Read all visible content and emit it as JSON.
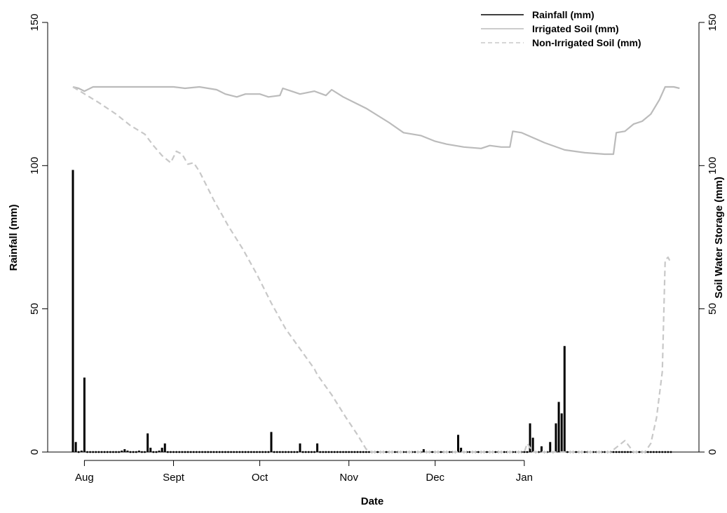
{
  "chart_data": {
    "type": "bar",
    "xlabel": "Date",
    "ylabel_left": "Rainfall (mm)",
    "ylabel_right": "Soil Water Storage (mm)",
    "ylim_left": [
      0,
      150
    ],
    "ylim_right": [
      0,
      150
    ],
    "x_ticks": [
      "Aug",
      "Sept",
      "Oct",
      "Nov",
      "Dec",
      "Jan"
    ],
    "y_ticks_left": [
      "0",
      "50",
      "100",
      "150"
    ],
    "y_ticks_right": [
      "0",
      "50",
      "100",
      "150"
    ],
    "legend_position": "top-right",
    "grid": false,
    "series": [
      {
        "name": "Rainfall (mm)",
        "style": "bars",
        "color": "#000000",
        "points": [
          [
            "2014-07-28",
            98.5
          ],
          [
            "2014-07-29",
            3.5
          ],
          [
            "2014-07-31",
            0.5
          ],
          [
            "2014-08-01",
            26
          ],
          [
            "2014-08-14",
            0.5
          ],
          [
            "2014-08-15",
            1
          ],
          [
            "2014-08-16",
            0.5
          ],
          [
            "2014-08-20",
            0.5
          ],
          [
            "2014-08-23",
            6.5
          ],
          [
            "2014-08-24",
            1.5
          ],
          [
            "2014-08-27",
            0.5
          ],
          [
            "2014-08-28",
            1.5
          ],
          [
            "2014-08-29",
            3
          ],
          [
            "2014-10-05",
            7
          ],
          [
            "2014-10-15",
            3
          ],
          [
            "2014-10-21",
            3
          ],
          [
            "2014-11-27",
            1
          ],
          [
            "2014-12-09",
            6
          ],
          [
            "2014-12-10",
            1.5
          ],
          [
            "2015-01-03",
            10
          ],
          [
            "2015-01-04",
            5
          ],
          [
            "2015-01-07",
            2
          ],
          [
            "2015-01-10",
            3.5
          ],
          [
            "2015-01-12",
            10
          ],
          [
            "2015-01-13",
            17.5
          ],
          [
            "2015-01-14",
            13.5
          ],
          [
            "2015-01-15",
            37
          ]
        ]
      },
      {
        "name": "Irrigated Soil (mm)",
        "style": "solid line",
        "color": "#bbbbbb",
        "points": [
          [
            "2014-07-28",
            127.5
          ],
          [
            "2014-07-30",
            127
          ],
          [
            "2014-08-01",
            126
          ],
          [
            "2014-08-04",
            127.5
          ],
          [
            "2014-09-01",
            127.5
          ],
          [
            "2014-09-05",
            127
          ],
          [
            "2014-09-10",
            127.5
          ],
          [
            "2014-09-16",
            126.5
          ],
          [
            "2014-09-19",
            125
          ],
          [
            "2014-09-23",
            124
          ],
          [
            "2014-09-26",
            125
          ],
          [
            "2014-10-01",
            125
          ],
          [
            "2014-10-04",
            124
          ],
          [
            "2014-10-08",
            124.5
          ],
          [
            "2014-10-09",
            127
          ],
          [
            "2014-10-12",
            126
          ],
          [
            "2014-10-15",
            125
          ],
          [
            "2014-10-20",
            126
          ],
          [
            "2014-10-24",
            124.5
          ],
          [
            "2014-10-26",
            126.5
          ],
          [
            "2014-10-30",
            124
          ],
          [
            "2014-11-07",
            120
          ],
          [
            "2014-11-15",
            115
          ],
          [
            "2014-11-20",
            111.5
          ],
          [
            "2014-11-26",
            110.5
          ],
          [
            "2014-12-01",
            108.5
          ],
          [
            "2014-12-05",
            107.5
          ],
          [
            "2014-12-11",
            106.5
          ],
          [
            "2014-12-17",
            106
          ],
          [
            "2014-12-20",
            107
          ],
          [
            "2014-12-24",
            106.5
          ],
          [
            "2014-12-27",
            106.5
          ],
          [
            "2014-12-28",
            112
          ],
          [
            "2014-12-31",
            111.5
          ],
          [
            "2015-01-08",
            108
          ],
          [
            "2015-01-15",
            105.5
          ],
          [
            "2015-01-22",
            104.5
          ],
          [
            "2015-01-29",
            104
          ],
          [
            "2015-02-01",
            104
          ],
          [
            "2015-02-02",
            111.5
          ],
          [
            "2015-02-05",
            112
          ],
          [
            "2015-02-08",
            114.5
          ],
          [
            "2015-02-11",
            115.5
          ],
          [
            "2015-02-14",
            118
          ],
          [
            "2015-02-17",
            123
          ],
          [
            "2015-02-19",
            127.5
          ],
          [
            "2015-02-22",
            127.5
          ],
          [
            "2015-02-24",
            127
          ]
        ]
      },
      {
        "name": "Non-Irrigated Soil (mm)",
        "style": "dashed line",
        "color": "#c8c8c8",
        "points": [
          [
            "2014-07-28",
            127.5
          ],
          [
            "2014-08-06",
            122
          ],
          [
            "2014-08-12",
            118
          ],
          [
            "2014-08-17",
            114
          ],
          [
            "2014-08-22",
            111
          ],
          [
            "2014-08-25",
            107
          ],
          [
            "2014-08-28",
            103.5
          ],
          [
            "2014-08-31",
            101
          ],
          [
            "2014-09-02",
            105
          ],
          [
            "2014-09-04",
            104
          ],
          [
            "2014-09-06",
            100.5
          ],
          [
            "2014-09-08",
            101
          ],
          [
            "2014-09-10",
            98
          ],
          [
            "2014-09-15",
            88
          ],
          [
            "2014-09-20",
            79
          ],
          [
            "2014-09-25",
            71
          ],
          [
            "2014-09-30",
            62
          ],
          [
            "2014-10-05",
            52
          ],
          [
            "2014-10-10",
            43
          ],
          [
            "2014-10-15",
            36
          ],
          [
            "2014-10-20",
            29
          ],
          [
            "2014-10-21",
            27
          ],
          [
            "2014-10-26",
            20
          ],
          [
            "2014-10-31",
            12
          ],
          [
            "2014-11-04",
            6
          ],
          [
            "2014-11-07",
            1
          ],
          [
            "2014-11-09",
            0
          ],
          [
            "2015-01-01",
            0
          ],
          [
            "2015-01-02",
            3
          ],
          [
            "2015-01-04",
            0
          ],
          [
            "2015-01-31",
            0
          ],
          [
            "2015-02-05",
            4
          ],
          [
            "2015-02-08",
            0
          ],
          [
            "2015-02-12",
            0
          ],
          [
            "2015-02-14",
            3
          ],
          [
            "2015-02-16",
            12
          ],
          [
            "2015-02-18",
            28
          ],
          [
            "2015-02-19",
            67
          ],
          [
            "2015-02-20",
            68
          ],
          [
            "2015-02-21",
            66
          ]
        ]
      }
    ]
  }
}
